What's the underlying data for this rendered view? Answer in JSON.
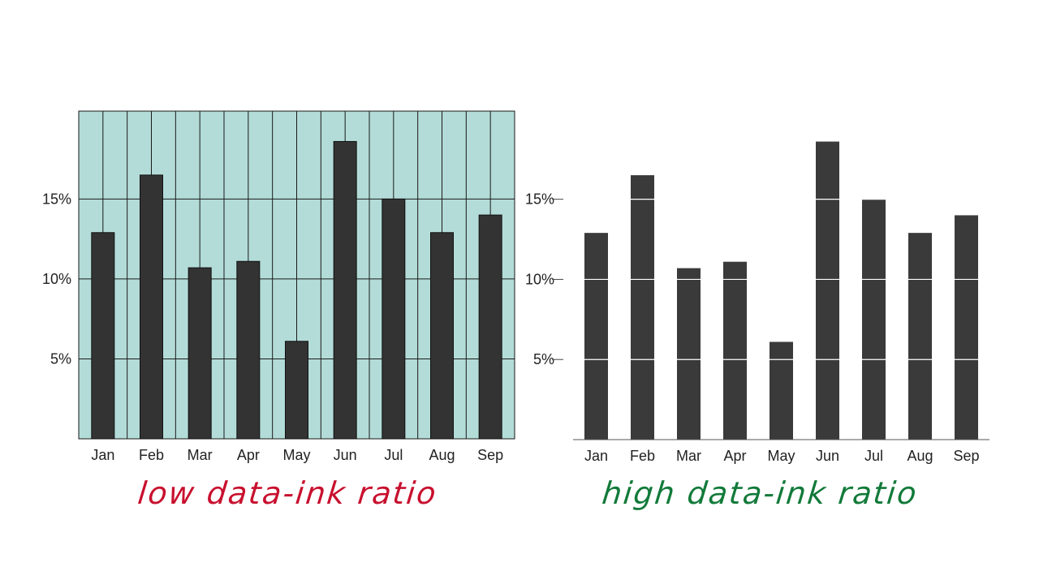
{
  "chart_data": [
    {
      "type": "bar",
      "categories": [
        "Jan",
        "Feb",
        "Mar",
        "Apr",
        "May",
        "Jun",
        "Jul",
        "Aug",
        "Sep"
      ],
      "values": [
        12.9,
        16.5,
        10.7,
        11.1,
        6.1,
        18.6,
        15.0,
        12.9,
        14.0
      ],
      "yticks": [
        "5%",
        "10%",
        "15%"
      ],
      "ytick_values": [
        5,
        10,
        15
      ],
      "ylim": [
        0,
        20.5
      ],
      "grid": true,
      "colors": {
        "background": "#b3dcd8",
        "bar": "#333333",
        "grid": "#1a1a1a"
      },
      "title": "",
      "xlabel": "",
      "ylabel": ""
    },
    {
      "type": "bar",
      "categories": [
        "Jan",
        "Feb",
        "Mar",
        "Apr",
        "May",
        "Jun",
        "Jul",
        "Aug",
        "Sep"
      ],
      "values": [
        12.9,
        16.5,
        10.7,
        11.1,
        6.1,
        18.6,
        15.0,
        12.9,
        14.0
      ],
      "yticks": [
        "5%",
        "10%",
        "15%"
      ],
      "ytick_values": [
        5,
        10,
        15
      ],
      "ylim": [
        0,
        20.5
      ],
      "grid": false,
      "colors": {
        "background": "#ffffff",
        "bar": "#3a3a3a",
        "grid": "#ffffff"
      },
      "title": "",
      "xlabel": "",
      "ylabel": ""
    }
  ],
  "annotations": {
    "left": "low data-ink ratio",
    "right": "high data-ink ratio"
  },
  "colors": {
    "left_note": "#c8102e",
    "right_note": "#127a3a"
  }
}
